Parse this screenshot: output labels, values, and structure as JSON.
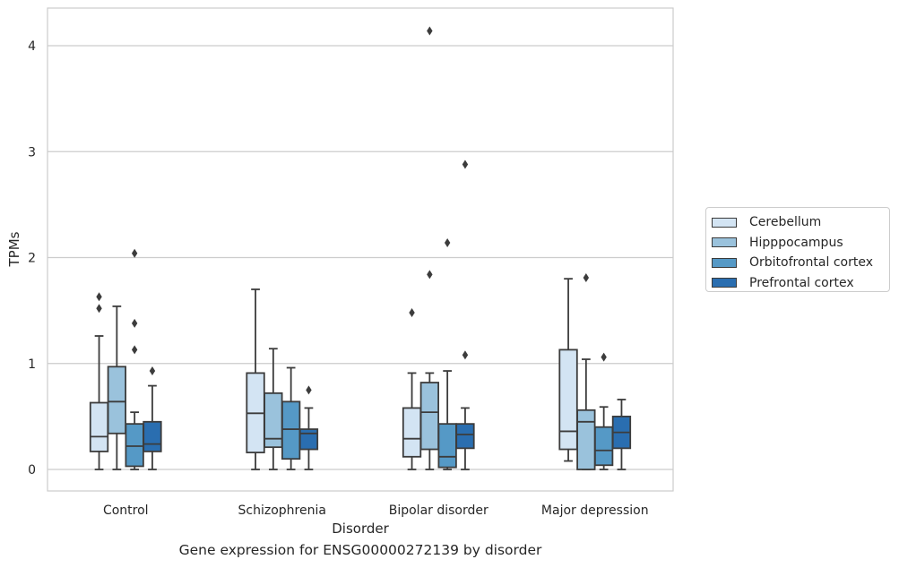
{
  "caption": "Gene expression for ENSG00000272139 by disorder",
  "chart_data": {
    "type": "boxplot",
    "title": "",
    "xlabel": "Disorder",
    "ylabel": "TPMs",
    "ylim": [
      -0.2,
      4.35
    ],
    "yticks": [
      0,
      1,
      2,
      3,
      4
    ],
    "grid": "horizontal",
    "legend_position": "right",
    "categories": [
      "Control",
      "Schizophrenia",
      "Bipolar disorder",
      "Major depression"
    ],
    "series": [
      {
        "name": "Cerebellum",
        "color": "#d3e4f3",
        "boxes": [
          {
            "whislo": 0.0,
            "q1": 0.17,
            "med": 0.31,
            "q3": 0.63,
            "whishi": 1.26,
            "fliers": [
              1.52,
              1.63
            ]
          },
          {
            "whislo": 0.0,
            "q1": 0.16,
            "med": 0.53,
            "q3": 0.91,
            "whishi": 1.7,
            "fliers": []
          },
          {
            "whislo": 0.0,
            "q1": 0.12,
            "med": 0.29,
            "q3": 0.58,
            "whishi": 0.91,
            "fliers": [
              1.48
            ]
          },
          {
            "whislo": 0.08,
            "q1": 0.19,
            "med": 0.36,
            "q3": 1.13,
            "whishi": 1.8,
            "fliers": []
          }
        ]
      },
      {
        "name": "Hipppocampus",
        "color": "#9ac2dc",
        "boxes": [
          {
            "whislo": 0.0,
            "q1": 0.34,
            "med": 0.64,
            "q3": 0.97,
            "whishi": 1.54,
            "fliers": []
          },
          {
            "whislo": 0.0,
            "q1": 0.21,
            "med": 0.29,
            "q3": 0.72,
            "whishi": 1.14,
            "fliers": []
          },
          {
            "whislo": 0.0,
            "q1": 0.19,
            "med": 0.54,
            "q3": 0.82,
            "whishi": 0.91,
            "fliers": [
              1.84,
              4.14
            ]
          },
          {
            "whislo": 0.0,
            "q1": 0.0,
            "med": 0.45,
            "q3": 0.56,
            "whishi": 1.04,
            "fliers": [
              1.81
            ]
          }
        ]
      },
      {
        "name": "Orbitofrontal cortex",
        "color": "#5599c6",
        "boxes": [
          {
            "whislo": 0.0,
            "q1": 0.03,
            "med": 0.22,
            "q3": 0.43,
            "whishi": 0.54,
            "fliers": [
              1.13,
              1.38,
              2.04
            ]
          },
          {
            "whislo": 0.0,
            "q1": 0.1,
            "med": 0.38,
            "q3": 0.64,
            "whishi": 0.96,
            "fliers": []
          },
          {
            "whislo": 0.0,
            "q1": 0.02,
            "med": 0.12,
            "q3": 0.43,
            "whishi": 0.93,
            "fliers": [
              2.14
            ]
          },
          {
            "whislo": 0.0,
            "q1": 0.04,
            "med": 0.18,
            "q3": 0.4,
            "whishi": 0.59,
            "fliers": [
              1.06
            ]
          }
        ]
      },
      {
        "name": "Prefrontal cortex",
        "color": "#2a6eb0",
        "boxes": [
          {
            "whislo": 0.0,
            "q1": 0.17,
            "med": 0.24,
            "q3": 0.45,
            "whishi": 0.79,
            "fliers": [
              0.93
            ]
          },
          {
            "whislo": 0.0,
            "q1": 0.19,
            "med": 0.34,
            "q3": 0.38,
            "whishi": 0.58,
            "fliers": [
              0.75
            ]
          },
          {
            "whislo": 0.0,
            "q1": 0.2,
            "med": 0.33,
            "q3": 0.43,
            "whishi": 0.58,
            "fliers": [
              1.08,
              2.88
            ]
          },
          {
            "whislo": 0.0,
            "q1": 0.2,
            "med": 0.35,
            "q3": 0.5,
            "whishi": 0.66,
            "fliers": []
          }
        ]
      }
    ]
  }
}
